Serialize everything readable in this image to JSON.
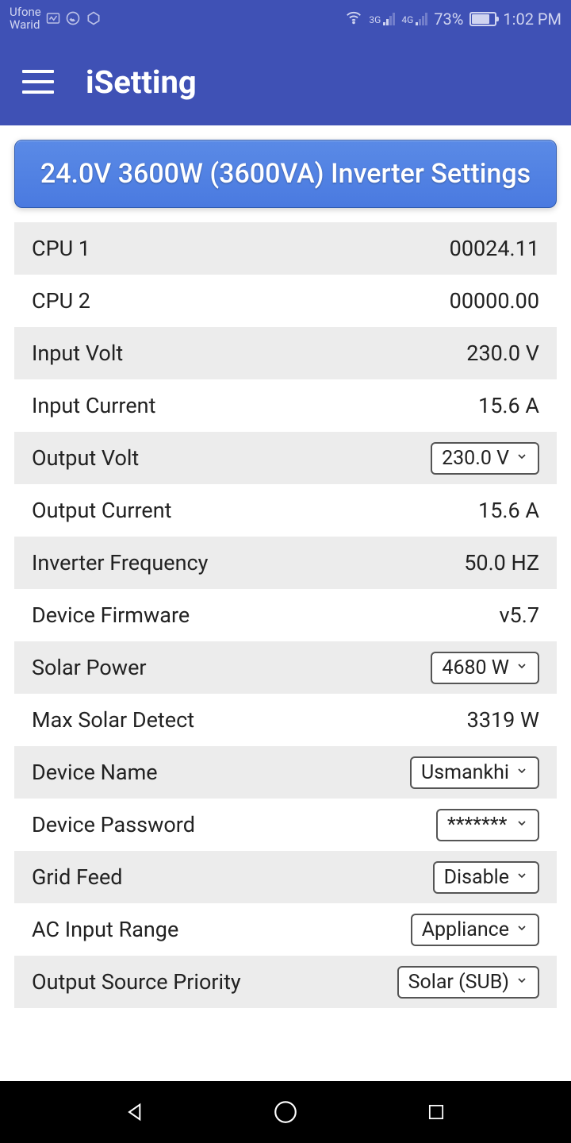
{
  "status": {
    "carrier1": "Ufone",
    "carrier2": "Warid",
    "net1": "3G",
    "net2": "4G",
    "battery_pct": "73%",
    "time": "1:02 PM"
  },
  "header": {
    "title": "iSetting"
  },
  "banner": {
    "text": "24.0V 3600W (3600VA) Inverter Settings"
  },
  "rows": [
    {
      "label": "CPU 1",
      "value": "00024.11",
      "type": "text",
      "shaded": true
    },
    {
      "label": "CPU 2",
      "value": "00000.00",
      "type": "text",
      "shaded": false
    },
    {
      "label": "Input Volt",
      "value": "230.0 V",
      "type": "text",
      "shaded": true
    },
    {
      "label": "Input Current",
      "value": "15.6 A",
      "type": "text",
      "shaded": false
    },
    {
      "label": "Output Volt",
      "value": "230.0 V",
      "type": "dropdown",
      "shaded": true
    },
    {
      "label": "Output Current",
      "value": "15.6 A",
      "type": "text",
      "shaded": false
    },
    {
      "label": "Inverter Frequency",
      "value": "50.0 HZ",
      "type": "text",
      "shaded": true
    },
    {
      "label": "Device Firmware",
      "value": "v5.7",
      "type": "text",
      "shaded": false
    },
    {
      "label": "Solar Power",
      "value": "4680 W",
      "type": "dropdown",
      "shaded": true
    },
    {
      "label": "Max Solar Detect",
      "value": "3319 W",
      "type": "text",
      "shaded": false
    },
    {
      "label": "Device Name",
      "value": "Usmankhi",
      "type": "dropdown",
      "shaded": true
    },
    {
      "label": "Device Password",
      "value": "*******",
      "type": "dropdown",
      "shaded": false
    },
    {
      "label": "Grid Feed",
      "value": "Disable",
      "type": "dropdown",
      "shaded": true
    },
    {
      "label": "AC Input Range",
      "value": "Appliance",
      "type": "dropdown",
      "shaded": false
    },
    {
      "label": "Output Source Priority",
      "value": "Solar (SUB)",
      "type": "dropdown",
      "shaded": true
    }
  ],
  "colors": {
    "primary": "#3f51b5",
    "banner_bg": "#4a7ae0",
    "row_shade": "#ececec",
    "text": "#222222"
  }
}
